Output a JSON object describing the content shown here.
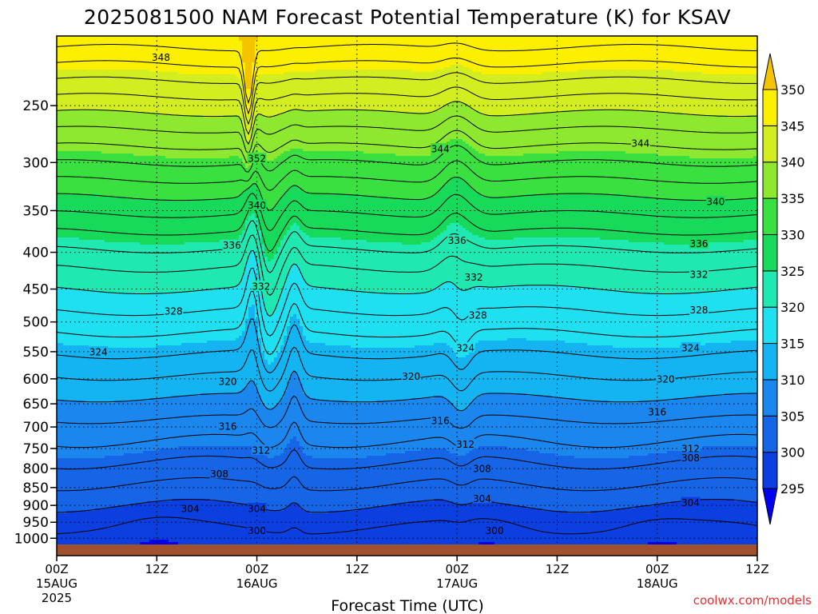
{
  "chart_data": {
    "type": "heatmap",
    "title": "2025081500 NAM Forecast Potential Temperature (K) for KSAV",
    "xlabel": "Forecast Time (UTC)",
    "ylabel": "",
    "credit": "coolwx.com/models",
    "x_hours": [
      0,
      72
    ],
    "x_ticks": [
      {
        "hour": 0,
        "label": "00Z",
        "date": "15AUG",
        "year": "2025"
      },
      {
        "hour": 12,
        "label": "12Z",
        "date": "",
        "year": ""
      },
      {
        "hour": 24,
        "label": "00Z",
        "date": "16AUG",
        "year": ""
      },
      {
        "hour": 36,
        "label": "12Z",
        "date": "",
        "year": ""
      },
      {
        "hour": 48,
        "label": "00Z",
        "date": "17AUG",
        "year": ""
      },
      {
        "hour": 60,
        "label": "12Z",
        "date": "",
        "year": ""
      },
      {
        "hour": 72,
        "label": "00Z",
        "date": "18AUG",
        "year": ""
      },
      {
        "hour": 84,
        "label": "12Z",
        "date": "",
        "year": ""
      }
    ],
    "y_ticks": [
      1000,
      950,
      900,
      850,
      800,
      750,
      700,
      650,
      600,
      550,
      500,
      450,
      400,
      350,
      300,
      250
    ],
    "y_labels": [
      "1000",
      "950",
      "900",
      "850",
      "800",
      "750",
      "700",
      "650",
      "600",
      "550",
      "500",
      "450",
      "400",
      "350",
      "300",
      "250"
    ],
    "ylim": [
      1020,
      200
    ],
    "log_pressure_axis": true,
    "grid": true,
    "colorbar": {
      "levels": [
        295,
        300,
        305,
        310,
        315,
        320,
        325,
        330,
        335,
        340,
        345,
        350
      ],
      "labels": [
        "295",
        "300",
        "305",
        "310",
        "315",
        "320",
        "325",
        "330",
        "335",
        "340",
        "345",
        "350"
      ],
      "colors": [
        "#0000f0",
        "#0b3fe0",
        "#1565e6",
        "#1a86ee",
        "#14b4f2",
        "#1fe0f0",
        "#1fe8b0",
        "#18da5a",
        "#3ae040",
        "#8ee830",
        "#d2ee20",
        "#fcf000",
        "#f4c400"
      ]
    },
    "contour_levels": [
      298,
      300,
      302,
      304,
      306,
      308,
      310,
      312,
      314,
      316,
      318,
      320,
      322,
      324,
      326,
      328,
      330,
      332,
      334,
      336,
      338,
      340,
      342,
      344,
      346,
      348
    ],
    "contour_labels": [
      {
        "text": "348",
        "hour": 12.5,
        "p": 214
      },
      {
        "text": "352",
        "hour": 24.0,
        "p": 296
      },
      {
        "text": "344",
        "hour": 46.0,
        "p": 287
      },
      {
        "text": "344",
        "hour": 70.0,
        "p": 282
      },
      {
        "text": "340",
        "hour": 24.0,
        "p": 344
      },
      {
        "text": "340",
        "hour": 79.0,
        "p": 340
      },
      {
        "text": "336",
        "hour": 21.0,
        "p": 391
      },
      {
        "text": "336",
        "hour": 48.0,
        "p": 385
      },
      {
        "text": "336",
        "hour": 77.0,
        "p": 389
      },
      {
        "text": "332",
        "hour": 24.5,
        "p": 446
      },
      {
        "text": "332",
        "hour": 50.0,
        "p": 433
      },
      {
        "text": "332",
        "hour": 77.0,
        "p": 429
      },
      {
        "text": "328",
        "hour": 14.0,
        "p": 483
      },
      {
        "text": "328",
        "hour": 50.5,
        "p": 489
      },
      {
        "text": "328",
        "hour": 77.0,
        "p": 481
      },
      {
        "text": "324",
        "hour": 5.0,
        "p": 550
      },
      {
        "text": "324",
        "hour": 49.0,
        "p": 543
      },
      {
        "text": "324",
        "hour": 76.0,
        "p": 543
      },
      {
        "text": "320",
        "hour": 20.5,
        "p": 605
      },
      {
        "text": "320",
        "hour": 42.5,
        "p": 595
      },
      {
        "text": "320",
        "hour": 73.0,
        "p": 600
      },
      {
        "text": "316",
        "hour": 20.5,
        "p": 698
      },
      {
        "text": "316",
        "hour": 46.0,
        "p": 686
      },
      {
        "text": "316",
        "hour": 72.0,
        "p": 667
      },
      {
        "text": "312",
        "hour": 24.5,
        "p": 754
      },
      {
        "text": "312",
        "hour": 49.0,
        "p": 740
      },
      {
        "text": "312",
        "hour": 76.0,
        "p": 750
      },
      {
        "text": "308",
        "hour": 19.5,
        "p": 813
      },
      {
        "text": "308",
        "hour": 51.0,
        "p": 800
      },
      {
        "text": "308",
        "hour": 76.0,
        "p": 772
      },
      {
        "text": "304",
        "hour": 16.0,
        "p": 909
      },
      {
        "text": "304",
        "hour": 24.0,
        "p": 909
      },
      {
        "text": "304",
        "hour": 51.0,
        "p": 880
      },
      {
        "text": "304",
        "hour": 76.0,
        "p": 892
      },
      {
        "text": "300",
        "hour": 24.0,
        "p": 975
      },
      {
        "text": "300",
        "hour": 52.5,
        "p": 975
      }
    ]
  }
}
